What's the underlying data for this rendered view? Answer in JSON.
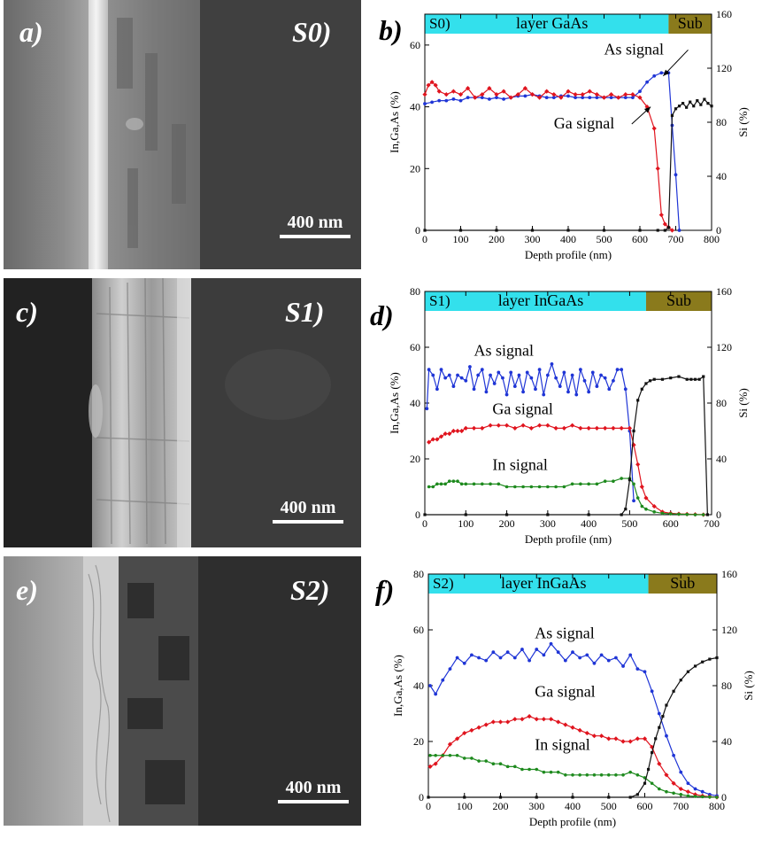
{
  "panels": [
    {
      "sem_label": "a)",
      "sample": "S0)",
      "scale_text": "400 nm",
      "plot_label": "b)",
      "layer_sample": "S0)",
      "layer_text": "layer GaAs",
      "sub_text": "Sub",
      "xlabel": "Depth profile (nm)",
      "ylabel_left": "In,Ga,As  (%)",
      "ylabel_right": "Si  (%)"
    },
    {
      "sem_label": "c)",
      "sample": "S1)",
      "scale_text": "400 nm",
      "plot_label": "d)",
      "layer_sample": "S1)",
      "layer_text": "layer InGaAs",
      "sub_text": "Sub",
      "xlabel": "Depth profile (nm)",
      "ylabel_left": "In,Ga,As  (%)",
      "ylabel_right": "Si  (%)"
    },
    {
      "sem_label": "e)",
      "sample": "S2)",
      "scale_text": "400 nm",
      "plot_label": "f)",
      "layer_sample": "S2)",
      "layer_text": "layer InGaAs",
      "sub_text": "Sub",
      "xlabel": "Depth profile (nm)",
      "ylabel_left": "In,Ga,As  (%)",
      "ylabel_right": "Si  (%)"
    }
  ],
  "colors": {
    "as": "#1f35d6",
    "ga": "#e0141e",
    "in": "#1e8a1e",
    "si": "#111111",
    "layer_band": "#33e0ec",
    "sub_band": "#8a7a1c"
  },
  "chart_data": [
    {
      "type": "line",
      "id": "b",
      "xlim": [
        0,
        800
      ],
      "xticks": [
        0,
        100,
        200,
        300,
        400,
        500,
        600,
        700,
        800
      ],
      "ylim_left": [
        0,
        70
      ],
      "yticks_left": [
        0,
        20,
        40,
        60
      ],
      "ylim_right": [
        0,
        160
      ],
      "yticks_right": [
        0,
        40,
        80,
        120,
        160
      ],
      "layer_end": 680,
      "annotations": [
        {
          "text": "As signal",
          "x": 500,
          "y": 57,
          "arrow_to": [
            665,
            50
          ],
          "series": "As"
        },
        {
          "text": "Ga signal",
          "x": 360,
          "y": 33,
          "arrow_to": [
            630,
            40
          ],
          "series": "Ga"
        }
      ],
      "series": [
        {
          "name": "As",
          "axis": "left",
          "x": [
            0,
            20,
            40,
            60,
            80,
            100,
            120,
            140,
            160,
            180,
            200,
            220,
            240,
            260,
            280,
            300,
            320,
            340,
            360,
            380,
            400,
            420,
            440,
            460,
            480,
            500,
            520,
            540,
            560,
            580,
            600,
            620,
            640,
            660,
            680,
            690,
            700,
            710
          ],
          "y": [
            41,
            41.5,
            42,
            42,
            42.5,
            42,
            43,
            43,
            43,
            42.5,
            43,
            42.5,
            43,
            43.5,
            43.5,
            44,
            43.5,
            43,
            43,
            43.5,
            43.5,
            43,
            43,
            43,
            43,
            43,
            43,
            43,
            43,
            43,
            45,
            48,
            50,
            51,
            51,
            34,
            18,
            0
          ]
        },
        {
          "name": "Ga",
          "axis": "left",
          "x": [
            0,
            10,
            20,
            30,
            40,
            60,
            80,
            100,
            120,
            140,
            160,
            180,
            200,
            220,
            240,
            260,
            280,
            300,
            320,
            340,
            360,
            380,
            400,
            420,
            440,
            460,
            480,
            500,
            520,
            540,
            560,
            580,
            600,
            620,
            640,
            650,
            660,
            670,
            680,
            690
          ],
          "y": [
            44,
            47,
            48,
            47,
            45,
            44,
            45,
            44,
            46,
            43,
            44,
            46,
            44,
            45,
            43,
            44,
            46,
            44,
            43,
            45,
            44,
            43,
            45,
            44,
            44,
            45,
            44,
            43,
            44,
            43,
            44,
            44,
            43,
            40,
            33,
            20,
            5,
            2,
            1,
            0
          ]
        },
        {
          "name": "Si",
          "axis": "right",
          "x": [
            0,
            100,
            200,
            300,
            400,
            500,
            600,
            650,
            670,
            680,
            690,
            700,
            710,
            720,
            730,
            740,
            750,
            760,
            770,
            780,
            790,
            800
          ],
          "y": [
            0,
            0,
            0,
            0,
            0,
            0,
            0,
            0,
            0,
            2,
            85,
            90,
            92,
            94,
            91,
            95,
            92,
            96,
            93,
            97,
            94,
            92
          ]
        }
      ]
    },
    {
      "type": "line",
      "id": "d",
      "xlim": [
        0,
        700
      ],
      "xticks": [
        0,
        100,
        200,
        300,
        400,
        500,
        600,
        700
      ],
      "ylim_left": [
        0,
        80
      ],
      "yticks_left": [
        0,
        20,
        40,
        60,
        80
      ],
      "ylim_right": [
        0,
        160
      ],
      "yticks_right": [
        0,
        40,
        80,
        120,
        160
      ],
      "layer_end": 540,
      "annotations": [
        {
          "text": "As signal",
          "x": 120,
          "y": 57
        },
        {
          "text": "Ga signal",
          "x": 165,
          "y": 36
        },
        {
          "text": "In signal",
          "x": 165,
          "y": 16
        }
      ],
      "series": [
        {
          "name": "As",
          "axis": "left",
          "x": [
            5,
            10,
            20,
            30,
            40,
            50,
            60,
            70,
            80,
            90,
            100,
            110,
            120,
            130,
            140,
            150,
            160,
            170,
            180,
            190,
            200,
            210,
            220,
            230,
            240,
            250,
            260,
            270,
            280,
            290,
            300,
            310,
            320,
            330,
            340,
            350,
            360,
            370,
            380,
            390,
            400,
            410,
            420,
            430,
            440,
            450,
            460,
            470,
            480,
            490,
            500,
            510
          ],
          "y": [
            38,
            52,
            50,
            45,
            52,
            49,
            50,
            46,
            50,
            49,
            48,
            53,
            45,
            50,
            52,
            44,
            50,
            47,
            51,
            49,
            43,
            51,
            46,
            50,
            44,
            51,
            49,
            45,
            52,
            43,
            50,
            54,
            49,
            46,
            51,
            44,
            50,
            43,
            52,
            48,
            44,
            51,
            46,
            50,
            49,
            45,
            48,
            52,
            52,
            45,
            30,
            5
          ]
        },
        {
          "name": "Ga",
          "axis": "left",
          "x": [
            10,
            20,
            30,
            40,
            50,
            60,
            70,
            80,
            90,
            100,
            120,
            140,
            160,
            180,
            200,
            220,
            240,
            260,
            280,
            300,
            320,
            340,
            360,
            380,
            400,
            420,
            440,
            460,
            480,
            500,
            510,
            520,
            530,
            540,
            560,
            580,
            600,
            620,
            640,
            660,
            680
          ],
          "y": [
            26,
            27,
            27,
            28,
            29,
            29,
            30,
            30,
            30,
            31,
            31,
            31,
            32,
            32,
            32,
            31,
            32,
            31,
            32,
            32,
            31,
            31,
            32,
            31,
            31,
            31,
            31,
            31,
            31,
            31,
            25,
            18,
            10,
            6,
            3,
            1,
            0.5,
            0.3,
            0.2,
            0.1,
            0
          ]
        },
        {
          "name": "In",
          "axis": "left",
          "x": [
            10,
            20,
            30,
            40,
            50,
            60,
            70,
            80,
            90,
            100,
            120,
            140,
            160,
            180,
            200,
            220,
            240,
            260,
            280,
            300,
            320,
            340,
            360,
            380,
            400,
            420,
            440,
            460,
            480,
            500,
            510,
            520,
            530,
            540,
            560,
            580,
            600,
            620,
            640,
            660,
            680
          ],
          "y": [
            10,
            10,
            11,
            11,
            11,
            12,
            12,
            12,
            11,
            11,
            11,
            11,
            11,
            11,
            10,
            10,
            10,
            10,
            10,
            10,
            10,
            10,
            11,
            11,
            11,
            11,
            12,
            12,
            13,
            13,
            11,
            6,
            3,
            2,
            1,
            0.5,
            0.3,
            0.2,
            0.1,
            0,
            0
          ]
        },
        {
          "name": "Si",
          "axis": "right",
          "x": [
            0,
            100,
            200,
            300,
            400,
            480,
            490,
            500,
            510,
            520,
            530,
            540,
            550,
            560,
            580,
            600,
            620,
            640,
            650,
            660,
            670,
            680,
            690
          ],
          "y": [
            0,
            0,
            0,
            0,
            0,
            0,
            4,
            25,
            60,
            82,
            90,
            94,
            96,
            97,
            97,
            98,
            99,
            97,
            97,
            97,
            97,
            99,
            0
          ]
        }
      ]
    },
    {
      "type": "line",
      "id": "f",
      "xlim": [
        0,
        800
      ],
      "xticks": [
        0,
        100,
        200,
        300,
        400,
        500,
        600,
        700,
        800
      ],
      "ylim_left": [
        0,
        80
      ],
      "yticks_left": [
        0,
        20,
        40,
        60,
        80
      ],
      "ylim_right": [
        0,
        160
      ],
      "yticks_right": [
        0,
        40,
        80,
        120,
        160
      ],
      "layer_end": 610,
      "annotations": [
        {
          "text": "As signal",
          "x": 295,
          "y": 57
        },
        {
          "text": "Ga signal",
          "x": 295,
          "y": 36
        },
        {
          "text": "In signal",
          "x": 295,
          "y": 17
        }
      ],
      "series": [
        {
          "name": "As",
          "axis": "left",
          "x": [
            5,
            20,
            40,
            60,
            80,
            100,
            120,
            140,
            160,
            180,
            200,
            220,
            240,
            260,
            280,
            300,
            320,
            340,
            360,
            380,
            400,
            420,
            440,
            460,
            480,
            500,
            520,
            540,
            560,
            580,
            600,
            620,
            640,
            660,
            680,
            700,
            720,
            740,
            760,
            780,
            800
          ],
          "y": [
            40,
            37,
            42,
            46,
            50,
            48,
            51,
            50,
            49,
            52,
            50,
            52,
            50,
            53,
            49,
            53,
            51,
            55,
            52,
            49,
            52,
            50,
            51,
            48,
            51,
            49,
            50,
            47,
            51,
            46,
            45,
            38,
            30,
            22,
            15,
            9,
            5,
            3,
            2,
            1,
            0.5
          ]
        },
        {
          "name": "Ga",
          "axis": "left",
          "x": [
            5,
            20,
            40,
            60,
            80,
            100,
            120,
            140,
            160,
            180,
            200,
            220,
            240,
            260,
            280,
            300,
            320,
            340,
            360,
            380,
            400,
            420,
            440,
            460,
            480,
            500,
            520,
            540,
            560,
            580,
            600,
            620,
            640,
            660,
            680,
            700,
            720,
            740,
            760,
            780,
            800
          ],
          "y": [
            11,
            12,
            15,
            19,
            21,
            23,
            24,
            25,
            26,
            27,
            27,
            27,
            28,
            28,
            29,
            28,
            28,
            28,
            27,
            26,
            25,
            24,
            23,
            22,
            22,
            21,
            21,
            20,
            20,
            21,
            21,
            18,
            12,
            8,
            5,
            3,
            2,
            1,
            0.5,
            0.2,
            0
          ]
        },
        {
          "name": "In",
          "axis": "left",
          "x": [
            5,
            20,
            40,
            60,
            80,
            100,
            120,
            140,
            160,
            180,
            200,
            220,
            240,
            260,
            280,
            300,
            320,
            340,
            360,
            380,
            400,
            420,
            440,
            460,
            480,
            500,
            520,
            540,
            560,
            580,
            600,
            620,
            640,
            660,
            680,
            700,
            720,
            740,
            760,
            780,
            800
          ],
          "y": [
            15,
            15,
            15,
            15,
            15,
            14,
            14,
            13,
            13,
            12,
            12,
            11,
            11,
            10,
            10,
            10,
            9,
            9,
            9,
            8,
            8,
            8,
            8,
            8,
            8,
            8,
            8,
            8,
            9,
            8,
            7,
            5,
            3,
            2,
            1.5,
            1,
            0.5,
            0.3,
            0.2,
            0.1,
            0
          ]
        },
        {
          "name": "Si",
          "axis": "right",
          "x": [
            0,
            100,
            200,
            300,
            400,
            500,
            560,
            580,
            600,
            610,
            620,
            630,
            640,
            650,
            660,
            680,
            700,
            720,
            740,
            760,
            780,
            800
          ],
          "y": [
            0,
            0,
            0,
            0,
            0,
            0,
            0,
            2,
            10,
            20,
            32,
            42,
            50,
            58,
            66,
            76,
            84,
            90,
            94,
            97,
            99,
            100
          ]
        }
      ]
    }
  ]
}
